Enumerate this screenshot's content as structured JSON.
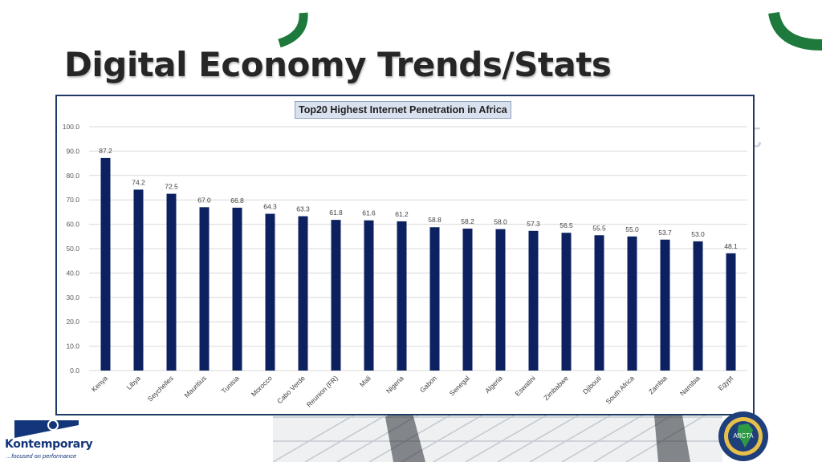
{
  "slide": {
    "title": "Digital Economy Trends/Stats"
  },
  "chart_data": {
    "type": "bar",
    "title": "Top20 Highest Internet Penetration in Africa",
    "categories": [
      "Kenya",
      "Libya",
      "Seychelles",
      "Mauritius",
      "Tunisia",
      "Morocco",
      "Cabo Verde",
      "Reunion (FR)",
      "Mali",
      "Nigeria",
      "Gabon",
      "Senegal",
      "Algeria",
      "Eswatini",
      "Zimbabwe",
      "Djibouti",
      "South Africa",
      "Zambia",
      "Namibia",
      "Egypt"
    ],
    "values": [
      87.2,
      74.2,
      72.5,
      67.0,
      66.8,
      64.3,
      63.3,
      61.8,
      61.6,
      61.2,
      58.8,
      58.2,
      58.0,
      57.3,
      56.5,
      55.5,
      55.0,
      53.7,
      53.0,
      48.1
    ],
    "value_labels": [
      "87.2",
      "74.2",
      "72.5",
      "67.0",
      "66.8",
      "64.3",
      "63.3",
      "61.8",
      "61.6",
      "61.2",
      "58.8",
      "58.2",
      "58.0",
      "57.3",
      "56.5",
      "55.5",
      "55.0",
      "53.7",
      "53.0",
      "48.1"
    ],
    "yticks": [
      "0.0",
      "10.0",
      "20.0",
      "30.0",
      "40.0",
      "50.0",
      "60.0",
      "70.0",
      "80.0",
      "90.0",
      "100.0"
    ],
    "ylim": [
      0,
      100
    ],
    "grid": true,
    "bar_color": "#0d2160",
    "xlabel": "",
    "ylabel": ""
  },
  "logo": {
    "name": "Kontemporary",
    "tagline": "...focused on performance"
  },
  "seal": {
    "text": "AfICTA"
  },
  "colors": {
    "accent_green": "#1e7a3c",
    "title_text": "#262626",
    "panel_border": "#1f3a64"
  }
}
